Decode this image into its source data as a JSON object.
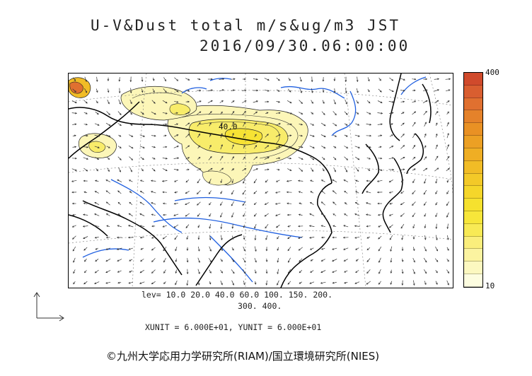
{
  "title": {
    "line1": "U-V&Dust total m/s&ug/m3 JST",
    "line2": "2016/09/30.06:00:00"
  },
  "colorbar": {
    "max_label": "400",
    "min_label": "10",
    "colors": [
      "#fdfde0",
      "#fcf8c0",
      "#fbf3a0",
      "#faee7c",
      "#f8ea55",
      "#f7e63a",
      "#f6e12e",
      "#f5d62a",
      "#f3c928",
      "#f1bc26",
      "#efae24",
      "#eca024",
      "#e99124",
      "#e5822a",
      "#e07030",
      "#d95e30",
      "#d04a2c"
    ],
    "border_color": "#000000"
  },
  "contour_levels": {
    "line1": "lev= 10.0 20.0 40.0 60.0 100. 150. 200.",
    "line2": "300. 400."
  },
  "units_text": "XUNIT = 6.000E+01, YUNIT = 6.000E+01",
  "map": {
    "contour_label": "40.0",
    "coast_color": "#000000",
    "river_color": "#1f5fe0",
    "graticule_color": "#777777"
  },
  "credit": "©九州大学応用力学研究所(RIAM)/国立環境研究所(NIES)"
}
